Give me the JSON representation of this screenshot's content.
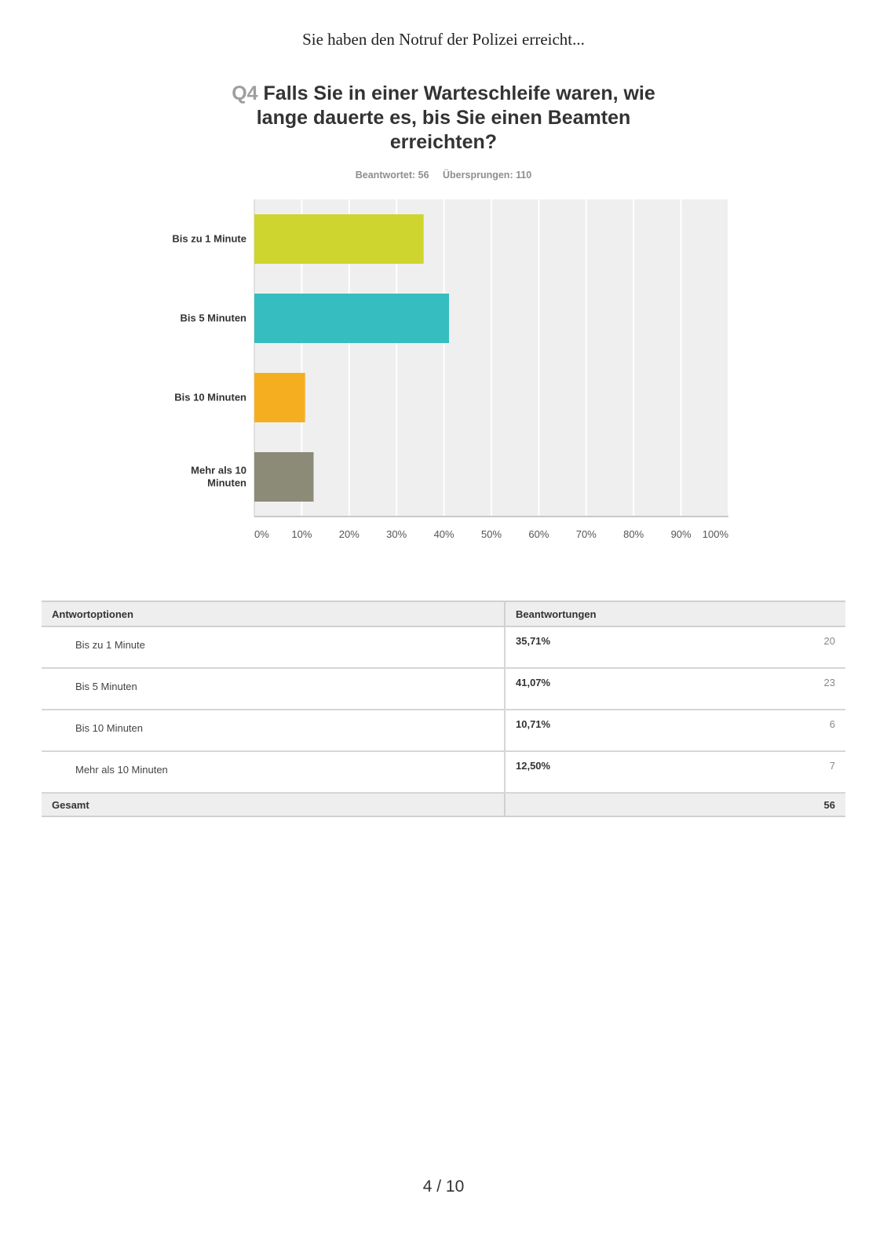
{
  "page": {
    "header": "Sie haben den Notruf der Polizei erreicht...",
    "page_number": "4 / 10"
  },
  "question": {
    "number": "Q4",
    "title": "Falls Sie in einer Warteschleife waren, wie lange dauerte es, bis Sie einen Beamten erreichten?",
    "answered": "Beantwortet: 56",
    "skipped": "Übersprungen: 110"
  },
  "chart_data": {
    "type": "bar",
    "orientation": "horizontal",
    "categories": [
      [
        "Bis zu 1 Minute"
      ],
      [
        "Bis 5 Minuten"
      ],
      [
        "Bis 10 Minuten"
      ],
      [
        "Mehr als 10",
        "Minuten"
      ]
    ],
    "values": [
      35.71,
      41.07,
      10.71,
      12.5
    ],
    "colors": [
      "#cfd52f",
      "#35bdbf",
      "#f6ae21",
      "#8b8b78"
    ],
    "xlim": [
      0,
      100
    ],
    "x_ticks": [
      "0%",
      "10%",
      "20%",
      "30%",
      "40%",
      "50%",
      "60%",
      "70%",
      "80%",
      "90%",
      "100%"
    ],
    "grid": true,
    "title": "",
    "xlabel": "",
    "ylabel": ""
  },
  "table": {
    "col_options": "Antwortoptionen",
    "col_responses": "Beantwortungen",
    "rows": [
      {
        "label": "Bis zu 1 Minute",
        "pct": "35,71%",
        "count": "20"
      },
      {
        "label": "Bis 5 Minuten",
        "pct": "41,07%",
        "count": "23"
      },
      {
        "label": "Bis 10 Minuten",
        "pct": "10,71%",
        "count": "6"
      },
      {
        "label": "Mehr als 10 Minuten",
        "pct": "12,50%",
        "count": "7"
      }
    ],
    "total_label": "Gesamt",
    "total_value": "56"
  }
}
